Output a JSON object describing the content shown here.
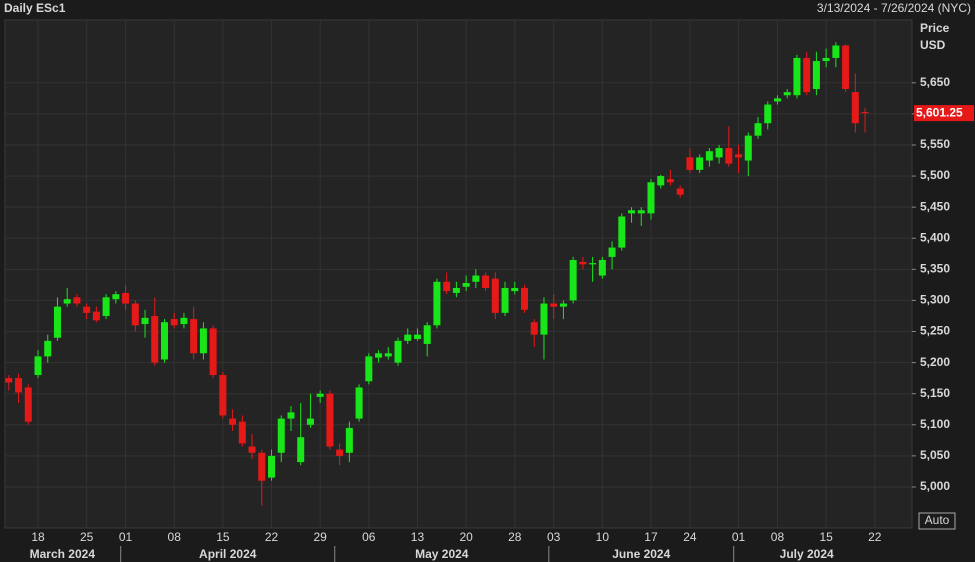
{
  "chart_data": {
    "type": "candlestick",
    "title": "Daily ESc1",
    "date_range": "3/13/2024 - 7/26/2024 (NYC)",
    "y_label": "Price",
    "y_unit": "USD",
    "auto_button": "Auto",
    "up_color": "#19e619",
    "down_color": "#e61919",
    "grid": true,
    "categories": [
      null,
      null,
      null,
      "18",
      null,
      null,
      null,
      null,
      "25",
      null,
      null,
      null,
      "01",
      null,
      null,
      null,
      null,
      "08",
      null,
      null,
      null,
      null,
      "15",
      null,
      null,
      null,
      null,
      "22",
      null,
      null,
      null,
      null,
      "29",
      null,
      null,
      null,
      null,
      "06",
      null,
      null,
      null,
      null,
      "13",
      null,
      null,
      null,
      null,
      "20",
      null,
      null,
      null,
      null,
      "28",
      null,
      null,
      null,
      "03",
      null,
      null,
      null,
      null,
      "10",
      null,
      null,
      null,
      null,
      "17",
      null,
      null,
      null,
      "24",
      null,
      null,
      null,
      null,
      "01",
      null,
      null,
      null,
      "08",
      null,
      null,
      null,
      null,
      "15",
      null,
      null,
      null,
      null,
      "22"
    ],
    "months": [
      "March 2024",
      "April 2024",
      "May 2024",
      "June 2024",
      "July 2024"
    ],
    "open": [
      5175,
      5175,
      5160,
      5180,
      5210,
      5240,
      5295,
      5305,
      5290,
      5282,
      5275,
      5302,
      5312,
      5295,
      5262,
      5275,
      5205,
      5270,
      5262,
      5270,
      5215,
      5255,
      5180,
      5110,
      5105,
      5065,
      5055,
      5015,
      5055,
      5110,
      5040,
      5100,
      5145,
      5150,
      5060,
      5055,
      5110,
      5170,
      5208,
      5210,
      5200,
      5235,
      5238,
      5230,
      5260,
      5330,
      5312,
      5322,
      5330,
      5340,
      5335,
      5280,
      5315,
      5320,
      5265,
      5245,
      5295,
      5290,
      5300,
      5362,
      5358,
      5340,
      5370,
      5385,
      5440,
      5440,
      5440,
      5485,
      5495,
      5480,
      5530,
      5510,
      5525,
      5530,
      5545,
      5535,
      5525,
      5565,
      5585,
      5620,
      5630,
      5630,
      5690,
      5640,
      5685,
      5690,
      5710,
      5635,
      5603,
      null
    ],
    "high": [
      5180,
      5182,
      5165,
      5220,
      5245,
      5305,
      5320,
      5310,
      5295,
      5290,
      5310,
      5315,
      5325,
      5300,
      5285,
      5305,
      5270,
      5280,
      5280,
      5290,
      5265,
      5260,
      5185,
      5125,
      5115,
      5085,
      5060,
      5060,
      5115,
      5130,
      5135,
      5150,
      5155,
      5155,
      5070,
      5105,
      5165,
      5215,
      5220,
      5225,
      5240,
      5255,
      5255,
      5265,
      5335,
      5345,
      5330,
      5340,
      5350,
      5345,
      5345,
      5330,
      5330,
      5325,
      5270,
      5305,
      5310,
      5300,
      5370,
      5370,
      5370,
      5370,
      5395,
      5440,
      5450,
      5450,
      5495,
      5502,
      5510,
      5485,
      5545,
      5535,
      5545,
      5550,
      5580,
      5550,
      5570,
      5595,
      5620,
      5630,
      5640,
      5695,
      5700,
      5700,
      5705,
      5715,
      5712,
      5665,
      5610,
      null
    ],
    "low": [
      5155,
      5135,
      5100,
      5175,
      5200,
      5235,
      5290,
      5290,
      5270,
      5265,
      5270,
      5295,
      5285,
      5250,
      5240,
      5195,
      5200,
      5255,
      5255,
      5205,
      5205,
      5175,
      5110,
      5090,
      5065,
      5045,
      4970,
      5010,
      5040,
      5090,
      5035,
      5095,
      5135,
      5060,
      5035,
      5040,
      5105,
      5165,
      5200,
      5205,
      5195,
      5230,
      5235,
      5210,
      5255,
      5310,
      5305,
      5315,
      5320,
      5315,
      5270,
      5275,
      5310,
      5280,
      5225,
      5205,
      5270,
      5270,
      5295,
      5350,
      5330,
      5335,
      5350,
      5380,
      5425,
      5420,
      5430,
      5480,
      5485,
      5465,
      5505,
      5505,
      5515,
      5520,
      5515,
      5505,
      5500,
      5560,
      5575,
      5615,
      5625,
      5625,
      5630,
      5630,
      5675,
      5675,
      5635,
      5570,
      5570,
      null
    ],
    "close": [
      5168,
      5152,
      5105,
      5210,
      5235,
      5290,
      5302,
      5295,
      5280,
      5268,
      5305,
      5310,
      5295,
      5260,
      5272,
      5200,
      5265,
      5260,
      5272,
      5215,
      5255,
      5180,
      5115,
      5100,
      5070,
      5055,
      5010,
      5050,
      5110,
      5120,
      5080,
      5110,
      5150,
      5065,
      5050,
      5095,
      5160,
      5210,
      5215,
      5215,
      5235,
      5245,
      5245,
      5260,
      5330,
      5315,
      5320,
      5328,
      5340,
      5320,
      5280,
      5320,
      5320,
      5285,
      5245,
      5295,
      5290,
      5295,
      5365,
      5358,
      5360,
      5365,
      5385,
      5435,
      5445,
      5445,
      5490,
      5500,
      5490,
      5470,
      5510,
      5530,
      5540,
      5545,
      5520,
      5530,
      5565,
      5585,
      5615,
      5625,
      5635,
      5690,
      5635,
      5685,
      5690,
      5710,
      5640,
      5585,
      5601.25,
      null
    ],
    "last_price": {
      "value": 5601.25,
      "label": "5,601.25"
    },
    "ylim": [
      4934,
      5751
    ],
    "yticks": [
      {
        "value": 5000,
        "label": "5,000"
      },
      {
        "value": 5050,
        "label": "5,050"
      },
      {
        "value": 5100,
        "label": "5,100"
      },
      {
        "value": 5150,
        "label": "5,150"
      },
      {
        "value": 5200,
        "label": "5,200"
      },
      {
        "value": 5250,
        "label": "5,250"
      },
      {
        "value": 5300,
        "label": "5,300"
      },
      {
        "value": 5350,
        "label": "5,350"
      },
      {
        "value": 5400,
        "label": "5,400"
      },
      {
        "value": 5450,
        "label": "5,450"
      },
      {
        "value": 5500,
        "label": "5,500"
      },
      {
        "value": 5550,
        "label": "5,550"
      },
      {
        "value": 5600,
        "label": "5,600"
      },
      {
        "value": 5650,
        "label": "5,650"
      }
    ]
  }
}
